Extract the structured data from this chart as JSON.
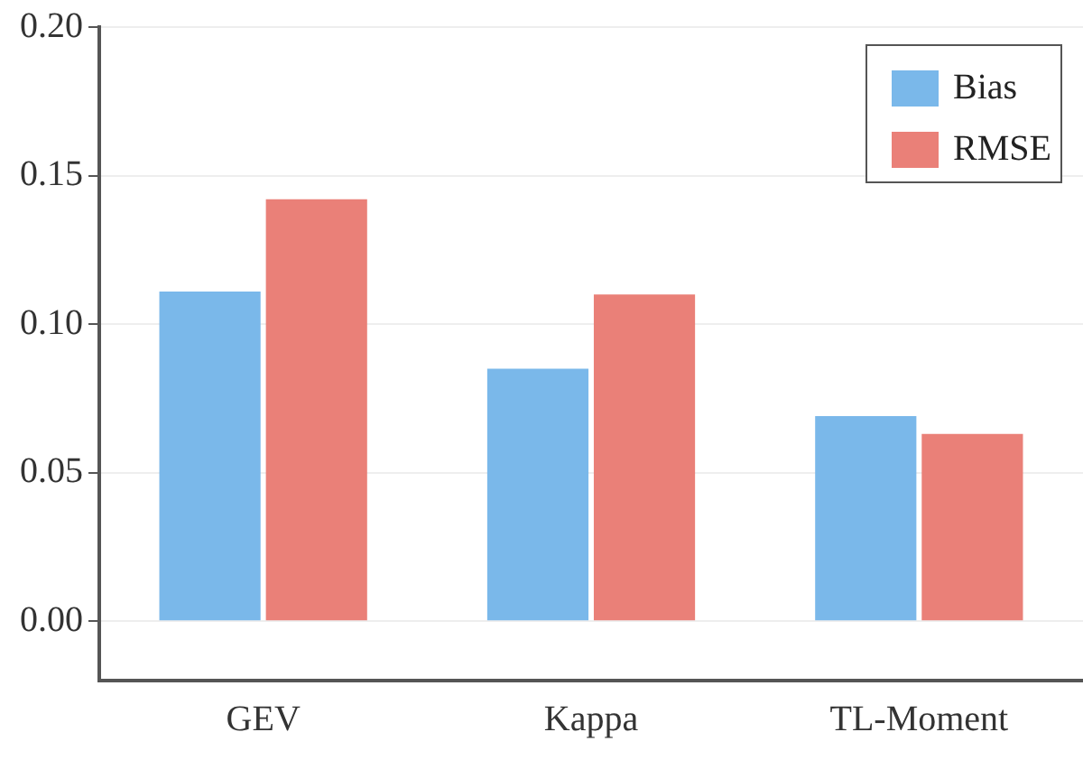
{
  "chart_data": {
    "type": "bar",
    "categories": [
      "GEV",
      "Kappa",
      "TL-Moment"
    ],
    "series": [
      {
        "name": "Bias",
        "color": "#7ab8ea",
        "values": [
          0.111,
          0.085,
          0.069
        ]
      },
      {
        "name": "RMSE",
        "color": "#ea8078",
        "values": [
          0.142,
          0.11,
          0.063
        ]
      }
    ],
    "ylim": [
      -0.02,
      0.2
    ],
    "yticks": [
      {
        "value": 0,
        "label": "0.00"
      },
      {
        "value": 0.05,
        "label": "0.05"
      },
      {
        "value": 0.1,
        "label": "0.10"
      },
      {
        "value": 0.15,
        "label": "0.15"
      },
      {
        "value": 0.2,
        "label": "0.20"
      }
    ],
    "grid": "y",
    "legend": "top right"
  }
}
